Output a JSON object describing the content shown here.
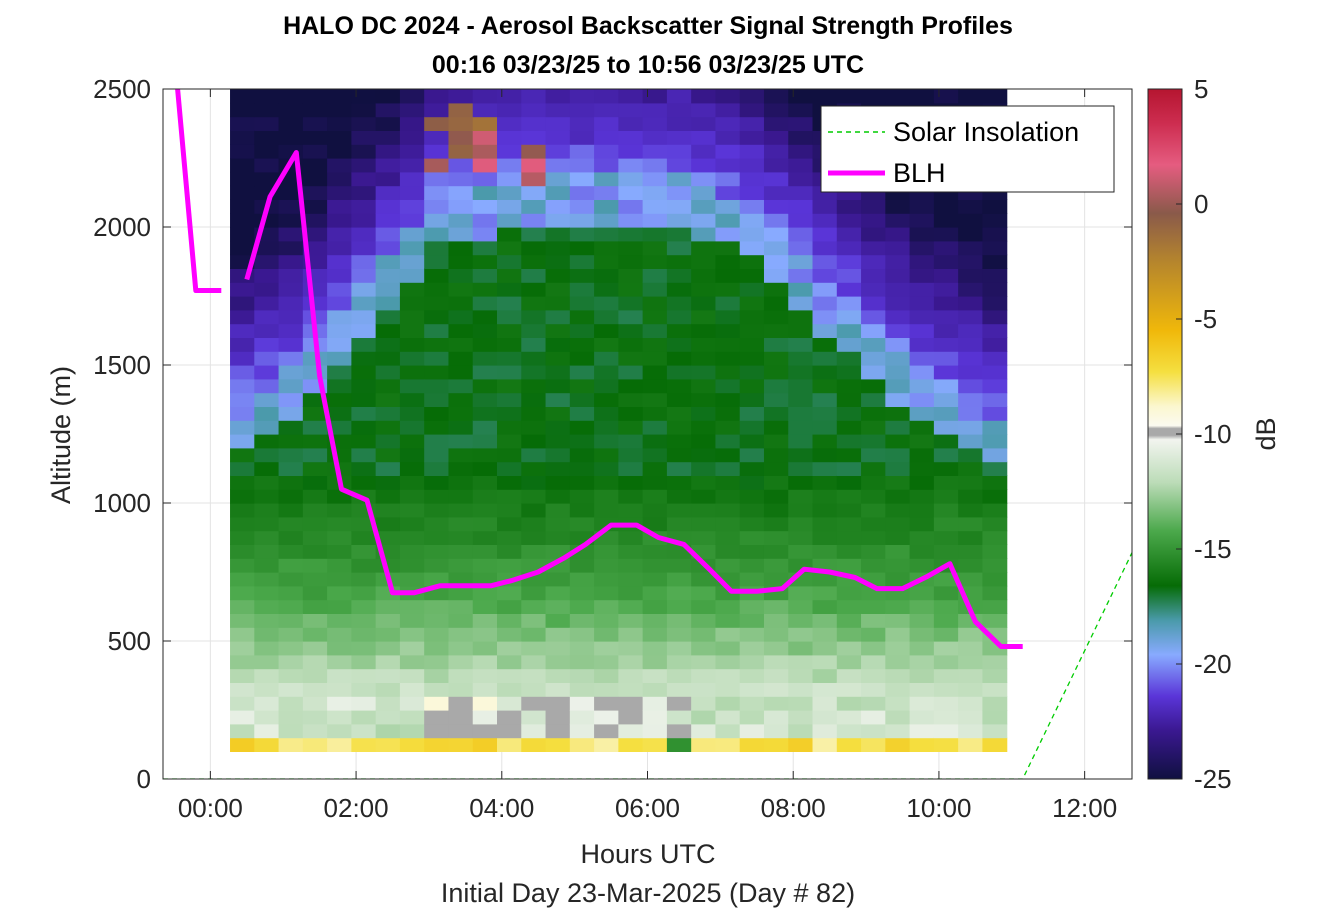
{
  "chart_data": {
    "type": "heatmap",
    "title": "HALO DC 2024 - Aerosol Backscatter Signal Strength Profiles",
    "subtitle": "00:16 03/23/25 to 10:56 03/23/25  UTC",
    "xlabel": "Hours UTC",
    "xlabel2": "Initial Day 23-Mar-2025 (Day # 82)",
    "ylabel": "Altitude (m)",
    "colorbar_label": "dB",
    "xlim": [
      -0.65,
      12.65
    ],
    "ylim": [
      0,
      2500
    ],
    "clim": [
      -25,
      5
    ],
    "grid": true,
    "x_ticks": [
      0,
      2,
      4,
      6,
      8,
      10,
      12
    ],
    "x_tick_labels": [
      "00:00",
      "02:00",
      "04:00",
      "06:00",
      "08:00",
      "10:00",
      "12:00"
    ],
    "y_ticks": [
      0,
      500,
      1000,
      1500,
      2000,
      2500
    ],
    "y_tick_labels": [
      "0",
      "500",
      "1000",
      "1500",
      "2000",
      "2500"
    ],
    "colorbar_ticks": [
      5,
      0,
      -5,
      -10,
      -15,
      -20,
      -25
    ],
    "colorbar_tick_labels": [
      "5",
      "0",
      "-5",
      "-10",
      "-15",
      "-20",
      "-25"
    ],
    "heatmap": {
      "x_start": 0.27,
      "x_end": 10.93,
      "n_columns": 32,
      "y_start": 100,
      "y_end": 2500,
      "n_rows": 48,
      "value_summary": "Near-surface layer (100-150 m) strongest (-8 to -5 dB); 150-700 m near -10 to -13 dB; green mid-layer -14 to -17 dB up to ~2000 m in midday hours; purple/dark above (-20 to -25 dB); bright features (-5 to 0 dB) near 2200-2500 m between 03:00 and 05:00 UTC"
    },
    "legend": {
      "position": "top-right",
      "entries": [
        "Solar Insolation",
        "BLH"
      ]
    },
    "series": [
      {
        "name": "BLH",
        "color": "#ff00ff",
        "segments": [
          {
            "x": [
              -0.45,
              -0.2,
              -0.2,
              0.15
            ],
            "y": [
              2500,
              1770,
              1770,
              1770
            ]
          },
          {
            "x": [
              0.5,
              0.82,
              1.18,
              1.5,
              1.8,
              2.15,
              2.5,
              2.8,
              3.15,
              3.5,
              3.85,
              4.15,
              4.5,
              4.85,
              5.15,
              5.5,
              5.85,
              6.15,
              6.5,
              6.85,
              7.15,
              7.5,
              7.85,
              8.15,
              8.5,
              8.85,
              9.15,
              9.5,
              9.85,
              10.15,
              10.5,
              10.85,
              11.15
            ],
            "y": [
              1810,
              2110,
              2270,
              1460,
              1050,
              1010,
              675,
              675,
              700,
              700,
              700,
              720,
              750,
              800,
              850,
              920,
              920,
              875,
              850,
              760,
              680,
              680,
              690,
              760,
              750,
              730,
              690,
              690,
              735,
              780,
              570,
              480,
              480
            ]
          }
        ]
      },
      {
        "name": "Solar Insolation",
        "color": "#00cc00",
        "style": "dashed",
        "x": [
          -0.65,
          11.15,
          12.65
        ],
        "y": [
          0,
          0,
          820
        ]
      }
    ]
  }
}
